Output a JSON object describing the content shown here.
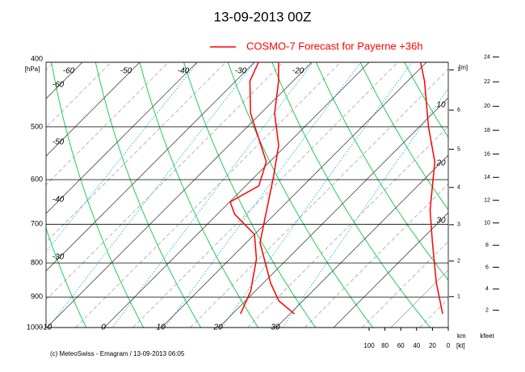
{
  "chart_data": {
    "type": "emagram",
    "title": "13-09-2013  00Z",
    "ylabel": "[hPa]",
    "ylim": [
      400,
      1000
    ],
    "yticks": [
      400,
      500,
      600,
      700,
      800,
      900,
      1000
    ],
    "log_scale": true,
    "isotherms": [
      -60,
      -50,
      -40,
      -30,
      -20,
      -10,
      0,
      10,
      20,
      30
    ],
    "series": [
      {
        "name": "COSMO-7 Forecast for Payerne   +36h",
        "color": "#ff0000",
        "pressure": [
          954,
          912,
          858,
          746,
          667,
          596,
          533,
          477,
          427,
          400
        ],
        "values": [
          20.8,
          15.8,
          11.3,
          2.4,
          -2.1,
          -6.6,
          -11.3,
          -17.6,
          -22.5,
          -25.8
        ]
      },
      {
        "color": "#ff0000",
        "pressure": [
          954,
          882,
          789,
          725,
          676,
          648,
          613,
          564,
          477,
          427,
          400
        ],
        "values": [
          11.4,
          9.2,
          4.6,
          0,
          -7.0,
          -9.9,
          -7.7,
          -10.6,
          -21.8,
          -27.5,
          -29.3
        ]
      },
      {
        "color": "#ff0000",
        "axis": "x2",
        "pressure": [
          954,
          858,
          746,
          667,
          564,
          500,
          427,
          400
        ],
        "values": [
          7,
          15,
          20,
          23,
          17,
          25,
          30,
          35
        ]
      }
    ],
    "x2lim": [
      100,
      0
    ],
    "x2ticks": [
      100,
      80,
      60,
      40,
      20,
      0
    ],
    "x2label": "[kt]",
    "height_label": "[m]",
    "km_label": "km",
    "km_ticks": [
      1,
      2,
      3,
      4,
      5,
      6,
      7
    ],
    "kfeet_label": "kfeet",
    "kfeet_ticks": [
      2,
      4,
      6,
      8,
      10,
      12,
      14,
      16,
      18,
      20,
      22,
      24
    ],
    "side_labels": [
      "10",
      "20",
      "30"
    ],
    "footer": "(c) MeteoSwiss - Emagram  /  13-09-2013  06:05"
  }
}
